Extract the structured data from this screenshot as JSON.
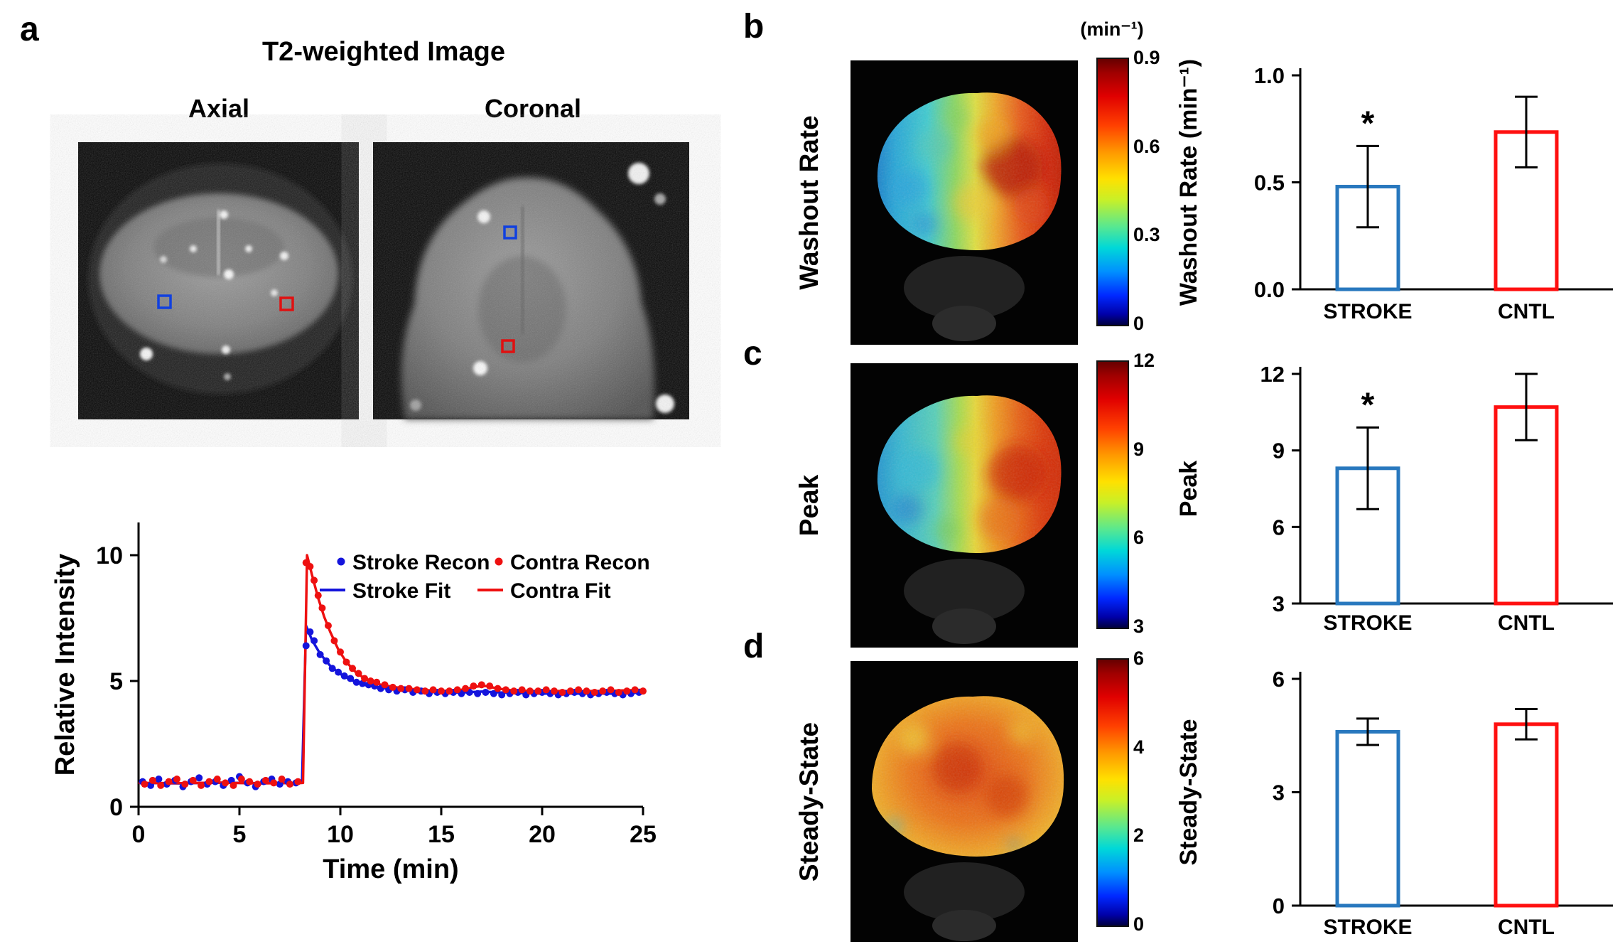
{
  "panels": {
    "a": {
      "letter": "a",
      "title": "T2-weighted Image",
      "axial_label": "Axial",
      "coronal_label": "Coronal"
    },
    "b": {
      "letter": "b",
      "row_label": "Washout Rate",
      "colorbar": {
        "unit": "(min⁻¹)",
        "ticks": [
          "0.9",
          "0.6",
          "0.3",
          "0"
        ]
      }
    },
    "c": {
      "letter": "c",
      "row_label": "Peak",
      "colorbar": {
        "ticks": [
          "12",
          "9",
          "6",
          "3"
        ]
      }
    },
    "d": {
      "letter": "d",
      "row_label": "Steady-State",
      "colorbar": {
        "ticks": [
          "6",
          "4",
          "2",
          "0"
        ]
      }
    }
  },
  "colors": {
    "stroke_blue": "#1414DC",
    "contra_red": "#EE1010",
    "bar_blue": "#2878BE",
    "bar_red": "#FF1010"
  },
  "chart_data": [
    {
      "id": "tic-curve",
      "type": "line",
      "title": "",
      "xlabel": "Time (min)",
      "ylabel": "Relative Intensity",
      "xlim": [
        0,
        25
      ],
      "ylim": [
        0,
        11.3
      ],
      "xticks": [
        0,
        5,
        10,
        15,
        20,
        25
      ],
      "yticks": [
        0,
        5,
        10
      ],
      "grid": false,
      "legend_position": "upper-center",
      "legend": [
        {
          "label": "Stroke Recon",
          "marker": "dot",
          "color": "#1414DC"
        },
        {
          "label": "Contra Recon",
          "marker": "dot",
          "color": "#EE1010"
        },
        {
          "label": "Stroke Fit",
          "marker": "line",
          "color": "#1414DC"
        },
        {
          "label": "Contra Fit",
          "marker": "line",
          "color": "#EE1010"
        }
      ],
      "series": [
        {
          "name": "Stroke Fit",
          "style": "line",
          "color": "#1414DC",
          "points": [
            [
              0,
              0.95
            ],
            [
              2,
              0.93
            ],
            [
              4,
              0.96
            ],
            [
              6,
              0.94
            ],
            [
              8.1,
              0.95
            ],
            [
              8.3,
              7.2
            ],
            [
              8.6,
              6.62
            ],
            [
              9,
              6.08
            ],
            [
              9.5,
              5.6
            ],
            [
              10,
              5.28
            ],
            [
              10.5,
              5.05
            ],
            [
              11,
              4.9
            ],
            [
              11.5,
              4.8
            ],
            [
              12,
              4.73
            ],
            [
              13,
              4.64
            ],
            [
              14,
              4.58
            ],
            [
              15,
              4.55
            ],
            [
              16,
              4.54
            ],
            [
              17,
              4.58
            ],
            [
              18,
              4.54
            ],
            [
              19,
              4.52
            ],
            [
              20,
              4.5
            ],
            [
              21,
              4.5
            ],
            [
              22,
              4.5
            ],
            [
              23,
              4.5
            ],
            [
              24,
              4.5
            ],
            [
              25,
              4.55
            ]
          ]
        },
        {
          "name": "Contra Fit",
          "style": "line",
          "color": "#EE1010",
          "points": [
            [
              0,
              0.95
            ],
            [
              2,
              0.94
            ],
            [
              4,
              0.96
            ],
            [
              6,
              0.93
            ],
            [
              8.15,
              0.95
            ],
            [
              8.35,
              10.0
            ],
            [
              8.6,
              9.2
            ],
            [
              8.9,
              8.3
            ],
            [
              9.2,
              7.55
            ],
            [
              9.5,
              6.95
            ],
            [
              9.9,
              6.25
            ],
            [
              10.3,
              5.75
            ],
            [
              10.8,
              5.32
            ],
            [
              11.3,
              5.05
            ],
            [
              12,
              4.85
            ],
            [
              13,
              4.72
            ],
            [
              14,
              4.65
            ],
            [
              15,
              4.6
            ],
            [
              16,
              4.65
            ],
            [
              16.8,
              4.78
            ],
            [
              17.2,
              4.8
            ],
            [
              17.8,
              4.7
            ],
            [
              18.5,
              4.63
            ],
            [
              19.5,
              4.6
            ],
            [
              21,
              4.6
            ],
            [
              23,
              4.6
            ],
            [
              25,
              4.65
            ]
          ]
        },
        {
          "name": "Stroke Recon",
          "style": "scatter",
          "color": "#1414DC",
          "points": [
            [
              0.2,
              1.0
            ],
            [
              0.6,
              0.85
            ],
            [
              1.0,
              1.1
            ],
            [
              1.4,
              0.9
            ],
            [
              1.8,
              1.05
            ],
            [
              2.2,
              0.8
            ],
            [
              2.6,
              1.0
            ],
            [
              3.0,
              1.15
            ],
            [
              3.4,
              0.9
            ],
            [
              3.8,
              1.0
            ],
            [
              4.2,
              0.85
            ],
            [
              4.6,
              1.05
            ],
            [
              5.0,
              1.2
            ],
            [
              5.4,
              0.95
            ],
            [
              5.8,
              0.8
            ],
            [
              6.2,
              1.0
            ],
            [
              6.6,
              1.1
            ],
            [
              7.0,
              0.9
            ],
            [
              7.4,
              1.0
            ],
            [
              7.8,
              0.95
            ],
            [
              8.3,
              6.4
            ],
            [
              8.5,
              6.95
            ],
            [
              8.7,
              6.6
            ],
            [
              9.0,
              6.05
            ],
            [
              9.3,
              5.8
            ],
            [
              9.6,
              5.5
            ],
            [
              9.9,
              5.35
            ],
            [
              10.2,
              5.2
            ],
            [
              10.5,
              5.1
            ],
            [
              10.8,
              4.95
            ],
            [
              11.1,
              4.9
            ],
            [
              11.4,
              4.85
            ],
            [
              11.7,
              4.8
            ],
            [
              12.0,
              4.7
            ],
            [
              12.4,
              4.65
            ],
            [
              12.8,
              4.6
            ],
            [
              13.2,
              4.65
            ],
            [
              13.6,
              4.55
            ],
            [
              14.0,
              4.6
            ],
            [
              14.4,
              4.5
            ],
            [
              14.8,
              4.55
            ],
            [
              15.2,
              4.5
            ],
            [
              15.6,
              4.55
            ],
            [
              16.0,
              4.5
            ],
            [
              16.4,
              4.55
            ],
            [
              16.8,
              4.5
            ],
            [
              17.2,
              4.55
            ],
            [
              17.6,
              4.5
            ],
            [
              18.0,
              4.45
            ],
            [
              18.4,
              4.5
            ],
            [
              18.8,
              4.55
            ],
            [
              19.2,
              4.45
            ],
            [
              19.6,
              4.5
            ],
            [
              20.0,
              4.55
            ],
            [
              20.4,
              4.5
            ],
            [
              20.8,
              4.45
            ],
            [
              21.2,
              4.5
            ],
            [
              21.6,
              4.55
            ],
            [
              22.0,
              4.5
            ],
            [
              22.4,
              4.45
            ],
            [
              22.8,
              4.5
            ],
            [
              23.2,
              4.55
            ],
            [
              23.6,
              4.5
            ],
            [
              24.0,
              4.45
            ],
            [
              24.4,
              4.5
            ],
            [
              24.8,
              4.55
            ]
          ]
        },
        {
          "name": "Contra Recon",
          "style": "scatter",
          "color": "#EE1010",
          "points": [
            [
              0.3,
              0.9
            ],
            [
              0.7,
              1.05
            ],
            [
              1.1,
              0.85
            ],
            [
              1.5,
              1.0
            ],
            [
              1.9,
              1.1
            ],
            [
              2.3,
              0.9
            ],
            [
              2.7,
              1.05
            ],
            [
              3.1,
              0.85
            ],
            [
              3.5,
              1.0
            ],
            [
              3.9,
              1.1
            ],
            [
              4.3,
              0.95
            ],
            [
              4.7,
              0.85
            ],
            [
              5.1,
              1.1
            ],
            [
              5.5,
              1.0
            ],
            [
              5.9,
              0.9
            ],
            [
              6.3,
              1.05
            ],
            [
              6.7,
              0.95
            ],
            [
              7.1,
              1.1
            ],
            [
              7.5,
              0.9
            ],
            [
              7.9,
              1.0
            ],
            [
              8.3,
              9.7
            ],
            [
              8.5,
              9.55
            ],
            [
              8.7,
              9.0
            ],
            [
              8.9,
              8.4
            ],
            [
              9.1,
              7.9
            ],
            [
              9.4,
              7.2
            ],
            [
              9.7,
              6.6
            ],
            [
              10.0,
              6.15
            ],
            [
              10.3,
              5.75
            ],
            [
              10.6,
              5.5
            ],
            [
              10.9,
              5.3
            ],
            [
              11.2,
              5.1
            ],
            [
              11.5,
              5.0
            ],
            [
              11.8,
              4.95
            ],
            [
              12.2,
              4.85
            ],
            [
              12.6,
              4.75
            ],
            [
              13.0,
              4.7
            ],
            [
              13.4,
              4.7
            ],
            [
              13.8,
              4.65
            ],
            [
              14.2,
              4.6
            ],
            [
              14.6,
              4.65
            ],
            [
              15.0,
              4.6
            ],
            [
              15.4,
              4.6
            ],
            [
              15.8,
              4.65
            ],
            [
              16.2,
              4.7
            ],
            [
              16.6,
              4.8
            ],
            [
              17.0,
              4.85
            ],
            [
              17.4,
              4.8
            ],
            [
              17.8,
              4.7
            ],
            [
              18.2,
              4.65
            ],
            [
              18.6,
              4.6
            ],
            [
              19.0,
              4.65
            ],
            [
              19.4,
              4.6
            ],
            [
              19.8,
              4.6
            ],
            [
              20.2,
              4.65
            ],
            [
              20.6,
              4.6
            ],
            [
              21.0,
              4.55
            ],
            [
              21.4,
              4.6
            ],
            [
              21.8,
              4.65
            ],
            [
              22.2,
              4.6
            ],
            [
              22.6,
              4.55
            ],
            [
              23.0,
              4.6
            ],
            [
              23.4,
              4.65
            ],
            [
              23.8,
              4.55
            ],
            [
              24.2,
              4.6
            ],
            [
              24.6,
              4.65
            ],
            [
              25.0,
              4.6
            ]
          ]
        }
      ]
    },
    {
      "id": "bar-washout",
      "type": "bar",
      "categories": [
        "STROKE",
        "CNTL"
      ],
      "values": [
        0.48,
        0.735
      ],
      "errors": [
        0.19,
        0.165
      ],
      "significance": [
        "*",
        ""
      ],
      "ylabel": "Washout Rate (min⁻¹)",
      "ylim": [
        0,
        1.0
      ],
      "yticks": [
        0,
        0.5,
        1.0
      ],
      "ytick_labels": [
        "0.0",
        "0.5",
        "1.0"
      ],
      "bar_colors": [
        "#2878BE",
        "#FF1010"
      ],
      "map_colorbar_range": [
        0,
        0.9
      ],
      "map_unit": "(min⁻¹)"
    },
    {
      "id": "bar-peak",
      "type": "bar",
      "categories": [
        "STROKE",
        "CNTL"
      ],
      "values": [
        8.3,
        10.7
      ],
      "errors": [
        1.6,
        1.3
      ],
      "significance": [
        "*",
        ""
      ],
      "ylabel": "Peak",
      "ylim": [
        3,
        12
      ],
      "yticks": [
        3,
        6,
        9,
        12
      ],
      "ytick_labels": [
        "3",
        "6",
        "9",
        "12"
      ],
      "bar_colors": [
        "#2878BE",
        "#FF1010"
      ],
      "map_colorbar_range": [
        3,
        12
      ]
    },
    {
      "id": "bar-steady",
      "type": "bar",
      "categories": [
        "STROKE",
        "CNTL"
      ],
      "values": [
        4.6,
        4.8
      ],
      "errors": [
        0.35,
        0.4
      ],
      "significance": [
        "",
        ""
      ],
      "ylabel": "Steady-State",
      "ylim": [
        0,
        6
      ],
      "yticks": [
        0,
        3,
        6
      ],
      "ytick_labels": [
        "0",
        "3",
        "6"
      ],
      "bar_colors": [
        "#2878BE",
        "#FF1010"
      ],
      "map_colorbar_range": [
        0,
        6
      ]
    }
  ]
}
